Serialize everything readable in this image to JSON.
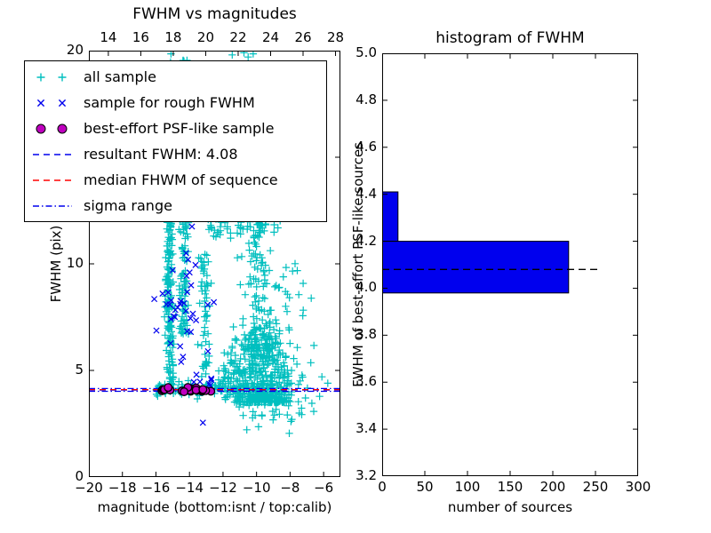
{
  "colors": {
    "all_sample": "#00BFBF",
    "rough_sample": "#0000EE",
    "psf_sample": "#BF00BF",
    "resultant_line": "#0000EE",
    "median_line": "#FF0000",
    "sigma_line": "#0000EE",
    "hist_fill": "#0000EE",
    "hist_edge": "#000000",
    "hist_median_line": "#000000",
    "axis": "#000000"
  },
  "chart_data": [
    {
      "id": "scatter",
      "type": "scatter",
      "title": "FWHM vs magnitudes",
      "xlabel": "magnitude (bottom:isnt / top:calib)",
      "ylabel": "FWHM (pix)",
      "xlim": [
        -20,
        -5
      ],
      "xlim_top": [
        12.8,
        28.3
      ],
      "ylim": [
        0,
        20
      ],
      "xticks_bottom": [
        {
          "v": -20,
          "label": "−20"
        },
        {
          "v": -18,
          "label": "−18"
        },
        {
          "v": -16,
          "label": "−16"
        },
        {
          "v": -14,
          "label": "−14"
        },
        {
          "v": -12,
          "label": "−12"
        },
        {
          "v": -10,
          "label": "−10"
        },
        {
          "v": -8,
          "label": "−8"
        },
        {
          "v": -6,
          "label": "−6"
        }
      ],
      "xticks_top": [
        {
          "v": 14,
          "label": "14"
        },
        {
          "v": 16,
          "label": "16"
        },
        {
          "v": 18,
          "label": "18"
        },
        {
          "v": 20,
          "label": "20"
        },
        {
          "v": 22,
          "label": "22"
        },
        {
          "v": 24,
          "label": "24"
        },
        {
          "v": 26,
          "label": "26"
        },
        {
          "v": 28,
          "label": "28"
        }
      ],
      "yticks": [
        {
          "v": 0,
          "label": "0"
        },
        {
          "v": 5,
          "label": "5"
        },
        {
          "v": 10,
          "label": "10"
        },
        {
          "v": 15,
          "label": "15"
        },
        {
          "v": 20,
          "label": "20"
        }
      ],
      "legend": [
        {
          "marker": "plus",
          "color": "#00BFBF",
          "label": "all sample"
        },
        {
          "marker": "cross",
          "color": "#0000EE",
          "label": "sample for rough FWHM"
        },
        {
          "marker": "dot",
          "color": "#BF00BF",
          "label": "best-effort PSF-like sample"
        },
        {
          "marker": "dash",
          "color": "#0000EE",
          "label": "resultant FWHM: 4.08"
        },
        {
          "marker": "dash",
          "color": "#FF0000",
          "label": "median FHWM of sequence"
        },
        {
          "marker": "dashdot",
          "color": "#0000EE",
          "label": "sigma range"
        }
      ],
      "lines": [
        {
          "name": "sigma-lower",
          "y": 4.02,
          "color": "#0000EE",
          "style": "dashdot"
        },
        {
          "name": "sigma-upper",
          "y": 4.15,
          "color": "#0000EE",
          "style": "dashdot"
        },
        {
          "name": "resultant-fwhm",
          "y": 4.08,
          "color": "#0000EE",
          "style": "dashed"
        },
        {
          "name": "median-fwhm",
          "y": 4.1,
          "color": "#FF0000",
          "style": "dashed"
        }
      ],
      "series": [
        {
          "name": "all sample",
          "marker": "plus",
          "color": "#00BFBF",
          "clusters": [
            {
              "n": 150,
              "x": {
                "dist": "normal",
                "mu": -15.2,
                "sd": 0.12
              },
              "y": [
                4.25,
                12.0
              ]
            },
            {
              "n": 20,
              "x": {
                "dist": "normal",
                "mu": -15.15,
                "sd": 0.1
              },
              "y": [
                12.0,
                19.8
              ]
            },
            {
              "n": 85,
              "x": {
                "dist": "normal",
                "mu": -14.35,
                "sd": 0.14
              },
              "y": [
                6.6,
                12.6
              ]
            },
            {
              "n": 28,
              "x": {
                "dist": "normal",
                "mu": -14.3,
                "sd": 0.12
              },
              "y": [
                12.6,
                19.9
              ]
            },
            {
              "n": 55,
              "x": {
                "dist": "normal",
                "mu": -13.05,
                "sd": 0.17
              },
              "y": [
                4.7,
                10.5
              ]
            },
            {
              "n": 14,
              "x": {
                "dist": "normal",
                "mu": -13.0,
                "sd": 0.15
              },
              "y": [
                10.5,
                19.0
              ]
            },
            {
              "n": 46,
              "x": [
                -12.9,
                -9.6
              ],
              "y": [
                11.2,
                12.35
              ]
            },
            {
              "n": 430,
              "x": {
                "dist": "normal",
                "mu": -9.7,
                "sd": 0.85
              },
              "y": {
                "dist": "pow",
                "lo": 3.5,
                "hi": 7.2,
                "pow": 2.2
              }
            },
            {
              "n": 140,
              "x": {
                "dist": "normal",
                "mu": -9.9,
                "sd": 0.55
              },
              "y": {
                "dist": "pow",
                "lo": 6.0,
                "hi": 12.6,
                "pow": 1.6
              }
            },
            {
              "n": 90,
              "x": [
                -12.0,
                -9.9
              ],
              "y": {
                "dist": "normal",
                "mu": 4.6,
                "sd": 0.6,
                "clip": [
                  3.4,
                  6.5
                ]
              }
            },
            {
              "n": 85,
              "x": [
                -16.0,
                -12.0
              ],
              "y": {
                "dist": "normal",
                "mu": 4.15,
                "sd": 0.16
              }
            },
            {
              "n": 34,
              "x": [
                -9.2,
                -6.1
              ],
              "y": [
                2.6,
                5.4
              ]
            },
            {
              "n": 24,
              "x": [
                -9.4,
                -6.4
              ],
              "y": [
                5.5,
                11.5
              ]
            },
            {
              "n": 12,
              "x": [
                -11.5,
                -9.0
              ],
              "y": [
                2.2,
                3.4
              ]
            }
          ],
          "points": [
            [
              -15.1,
              19.85
            ],
            [
              -11.45,
              19.8
            ],
            [
              -10.75,
              19.9
            ],
            [
              -10.5,
              19.7
            ],
            [
              -10.2,
              19.85
            ],
            [
              -8.05,
              2.05
            ],
            [
              -6.1,
              4.7
            ],
            [
              -5.75,
              4.4
            ],
            [
              -12.35,
              13.6
            ],
            [
              -12.6,
              15.2
            ]
          ]
        },
        {
          "name": "sample for rough FWHM",
          "marker": "cross",
          "color": "#0000EE",
          "clusters": [
            {
              "n": 32,
              "x": {
                "dist": "normal",
                "mu": -14.55,
                "sd": 0.72,
                "clip": [
                  -16.1,
                  -12.5
                ]
              },
              "y": {
                "dist": "normal",
                "mu": 7.9,
                "sd": 1.0,
                "clip": [
                  5.3,
                  10.2
                ]
              }
            },
            {
              "n": 7,
              "x": [
                -13.8,
                -12.7
              ],
              "y": [
                4.25,
                4.8
              ]
            }
          ],
          "points": [
            [
              -13.85,
              11.75
            ],
            [
              -12.55,
              8.2
            ],
            [
              -13.2,
              2.55
            ],
            [
              -15.0,
              9.7
            ],
            [
              -12.9,
              5.9
            ],
            [
              -14.2,
              10.5
            ]
          ]
        },
        {
          "name": "best-effort PSF-like sample",
          "marker": "dot",
          "color": "#BF00BF",
          "clusters": [
            {
              "n": 22,
              "x": [
                -15.7,
                -12.7
              ],
              "y": {
                "dist": "normal",
                "mu": 4.09,
                "sd": 0.055,
                "clip": [
                  3.95,
                  4.22
                ]
              }
            }
          ],
          "points": []
        }
      ]
    },
    {
      "id": "hist",
      "type": "bar",
      "orientation": "horizontal",
      "title": "histogram of FWHM",
      "xlabel": "number of sources",
      "ylabel": "FWHM of best-effort PSF-like sources",
      "xlim": [
        0,
        300
      ],
      "ylim": [
        3.2,
        5.0
      ],
      "xticks": [
        {
          "v": 0,
          "label": "0"
        },
        {
          "v": 50,
          "label": "50"
        },
        {
          "v": 100,
          "label": "100"
        },
        {
          "v": 150,
          "label": "150"
        },
        {
          "v": 200,
          "label": "200"
        },
        {
          "v": 250,
          "label": "250"
        },
        {
          "v": 300,
          "label": "300"
        }
      ],
      "yticks": [
        {
          "v": 3.2,
          "label": "3.2"
        },
        {
          "v": 3.4,
          "label": "3.4"
        },
        {
          "v": 3.6,
          "label": "3.6"
        },
        {
          "v": 3.8,
          "label": "3.8"
        },
        {
          "v": 4.0,
          "label": "4.0"
        },
        {
          "v": 4.2,
          "label": "4.2"
        },
        {
          "v": 4.4,
          "label": "4.4"
        },
        {
          "v": 4.6,
          "label": "4.6"
        },
        {
          "v": 4.8,
          "label": "4.8"
        },
        {
          "v": 5.0,
          "label": "5.0"
        }
      ],
      "bins": [
        {
          "lo": 3.98,
          "hi": 4.2,
          "count": 218
        },
        {
          "lo": 4.2,
          "hi": 4.41,
          "count": 18
        }
      ],
      "median_line": {
        "y": 4.08,
        "x0": 0,
        "x1": 255,
        "style": "dashed",
        "color": "#000000"
      }
    }
  ]
}
